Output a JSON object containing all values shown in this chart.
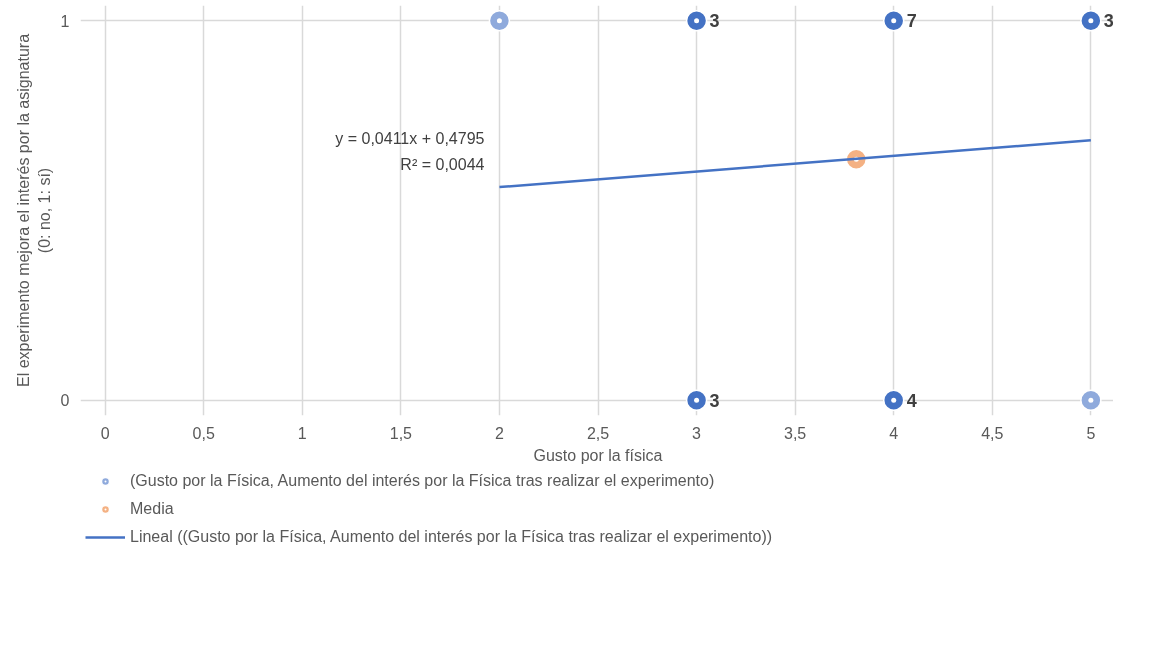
{
  "chart_data": {
    "type": "scatter",
    "xlabel": "Gusto por la física",
    "ylabel": "El experimento mejora el interés por la asignatura\n(0: no, 1: sí)",
    "xlim": [
      0,
      5
    ],
    "ylim": [
      0,
      1
    ],
    "xticks": [
      0,
      {
        "value": 0.5,
        "label": "0,5"
      },
      1,
      {
        "value": 1.5,
        "label": "1,5"
      },
      2,
      {
        "value": 2.5,
        "label": "2,5"
      },
      3,
      {
        "value": 3.5,
        "label": "3,5"
      },
      4,
      {
        "value": 4.5,
        "label": "4,5"
      },
      5
    ],
    "yticks": [
      0,
      1
    ],
    "grid": true,
    "legend": "bottom",
    "marker": "circle",
    "annotations": [
      "y = 0,0411x + 0,4795",
      "R² = 0,0044",
      {
        "text": "3",
        "x": 3,
        "y": 1
      },
      {
        "text": "7",
        "x": 4,
        "y": 1
      },
      {
        "text": "3",
        "x": 5,
        "y": 1
      },
      {
        "text": "3",
        "x": 3,
        "y": 0
      },
      {
        "text": "4",
        "x": 4,
        "y": 0
      }
    ],
    "series": [
      {
        "name": "(Gusto por la Física, Aumento del interés por la Física tras realizar el experimento)",
        "color": "#8faadc",
        "x": [
          2,
          3,
          4,
          5,
          3,
          4,
          5
        ],
        "values": [
          1,
          1,
          1,
          1,
          0,
          0,
          0
        ],
        "colors": [
          "#8faadc",
          "#4472c4",
          "#4472c4",
          "#4472c4",
          "#4472c4",
          "#4472c4",
          "#8faadc"
        ]
      },
      {
        "name": "Media",
        "color": "#f4b183",
        "x": [
          3.81
        ],
        "values": [
          0.635
        ]
      },
      {
        "name": "Lineal ((Gusto por la Física, Aumento del interés por la Física tras realizar el experimento))",
        "type": "line",
        "marker": "none",
        "color": "#4472c4",
        "x": [
          2,
          5
        ],
        "values": [
          0.5617,
          0.685
        ]
      }
    ]
  }
}
